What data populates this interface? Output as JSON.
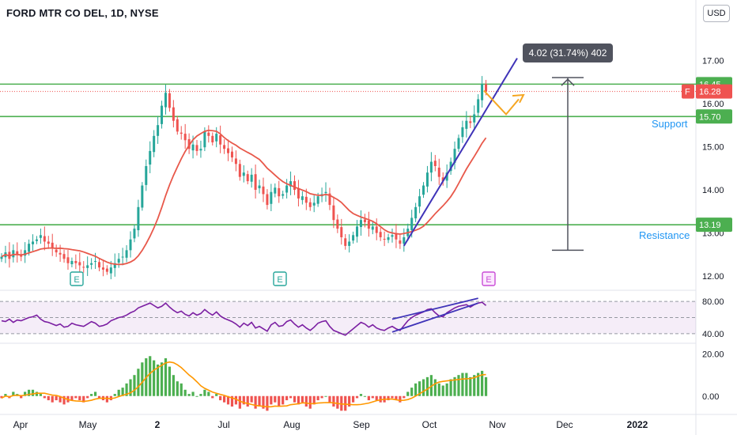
{
  "header": {
    "symbol_title": "FORD MTR CO DEL, 1D, NYSE",
    "currency_label": "USD"
  },
  "colors": {
    "up": "#26a69a",
    "down": "#ef5350",
    "levels": "#4caf50",
    "trend": "#3f33b8",
    "ma": "#e8584a",
    "rsi": "#7b1fa2",
    "hist_up": "#4caf50",
    "hist_down": "#ef5350",
    "signal": "#ff9800",
    "projection": "#f5a623",
    "measure": "#50535e",
    "label_blue": "#2196f3"
  },
  "annotations": {
    "measure_label": "4.02 (31.74%) 402",
    "support_label": "Support",
    "resistance_label": "Resistance",
    "earnings_marks": [
      "E",
      "E",
      "E"
    ],
    "levels": {
      "upper": "16.45",
      "last": "16.28",
      "last_prefix": "F",
      "support": "15.70",
      "resistance": "13.19"
    }
  },
  "chart_data": [
    {
      "type": "candlestick",
      "title": "FORD MTR CO DEL, 1D, NYSE",
      "x_ticks": [
        "Apr",
        "May",
        "2",
        "Jul",
        "Aug",
        "Sep",
        "Oct",
        "Nov",
        "Dec",
        "2022"
      ],
      "y_ticks": [
        "12.00",
        "13.00",
        "14.00",
        "15.00",
        "16.00",
        "17.00"
      ],
      "ylim": [
        11.8,
        17.3
      ],
      "horizontal_levels": [
        16.45,
        15.7,
        13.19
      ],
      "last_price": 16.28,
      "moving_average_shown": true,
      "close_series": [
        12.45,
        12.55,
        12.4,
        12.6,
        12.5,
        12.45,
        12.6,
        12.75,
        12.8,
        12.85,
        12.95,
        12.8,
        12.75,
        12.65,
        12.55,
        12.5,
        12.4,
        12.3,
        12.35,
        12.3,
        12.25,
        12.2,
        12.25,
        12.3,
        12.35,
        12.2,
        12.15,
        12.1,
        12.2,
        12.3,
        12.4,
        12.45,
        12.6,
        12.85,
        13.1,
        13.6,
        14.1,
        14.55,
        14.9,
        15.25,
        15.5,
        15.95,
        16.25,
        15.9,
        15.6,
        15.35,
        15.3,
        15.15,
        14.95,
        15.05,
        14.9,
        14.95,
        15.35,
        15.25,
        15.1,
        15.3,
        15.05,
        14.95,
        14.85,
        14.75,
        14.6,
        14.3,
        14.4,
        14.2,
        14.35,
        14.0,
        14.1,
        13.9,
        13.65,
        13.95,
        14.05,
        13.85,
        13.9,
        14.1,
        14.2,
        14.0,
        13.8,
        13.85,
        13.7,
        13.6,
        13.7,
        13.85,
        13.9,
        13.95,
        13.65,
        13.3,
        13.1,
        12.9,
        12.7,
        12.8,
        12.95,
        13.15,
        13.3,
        13.25,
        13.1,
        13.15,
        13.0,
        12.9,
        12.85,
        12.9,
        12.95,
        12.85,
        12.75,
        12.9,
        13.1,
        13.35,
        13.6,
        13.85,
        14.1,
        14.4,
        14.65,
        14.55,
        14.3,
        14.2,
        14.4,
        14.65,
        14.95,
        15.2,
        15.45,
        15.6,
        15.55,
        15.75,
        16.1,
        16.45,
        16.28
      ]
    },
    {
      "type": "line",
      "name": "",
      "y_ticks": [
        "40.00",
        "80.00"
      ],
      "ylim": [
        30,
        90
      ],
      "band": [
        40,
        80
      ],
      "midline": 60,
      "values": [
        56,
        55,
        58,
        54,
        57,
        56,
        58,
        60,
        61,
        63,
        58,
        55,
        54,
        52,
        50,
        52,
        48,
        49,
        53,
        51,
        50,
        49,
        52,
        55,
        53,
        49,
        50,
        52,
        56,
        58,
        60,
        61,
        63,
        66,
        68,
        72,
        74,
        76,
        78,
        75,
        72,
        74,
        78,
        73,
        69,
        66,
        68,
        64,
        62,
        66,
        63,
        65,
        70,
        66,
        63,
        67,
        62,
        59,
        57,
        55,
        52,
        48,
        53,
        50,
        54,
        47,
        49,
        46,
        43,
        51,
        54,
        49,
        50,
        55,
        57,
        52,
        48,
        51,
        47,
        44,
        48,
        53,
        55,
        56,
        49,
        44,
        42,
        40,
        38,
        42,
        46,
        50,
        54,
        52,
        48,
        51,
        47,
        45,
        44,
        47,
        49,
        46,
        44,
        50,
        56,
        60,
        63,
        65,
        67,
        70,
        71,
        66,
        62,
        61,
        66,
        69,
        72,
        74,
        75,
        76,
        73,
        76,
        78,
        79,
        75
      ]
    },
    {
      "type": "bar",
      "name": "",
      "y_ticks": [
        "0.00",
        "20.00"
      ],
      "ylim": [
        -8,
        24
      ],
      "signal_shown": true,
      "values": [
        -1,
        1,
        -1,
        2,
        1,
        -1,
        2,
        3,
        3,
        2,
        1,
        -1,
        -2,
        -3,
        -2,
        -3,
        -4,
        -3,
        -2,
        -1,
        -2,
        -3,
        -1,
        1,
        2,
        -1,
        -2,
        -3,
        -2,
        1,
        3,
        4,
        6,
        8,
        10,
        13,
        16,
        18,
        19,
        17,
        15,
        16,
        18,
        14,
        10,
        7,
        6,
        3,
        1,
        2,
        0,
        1,
        3,
        2,
        -1,
        1,
        -2,
        -3,
        -4,
        -5,
        -4,
        -6,
        -4,
        -5,
        -3,
        -6,
        -5,
        -6,
        -7,
        -4,
        -3,
        -5,
        -4,
        -2,
        -1,
        -3,
        -4,
        -3,
        -5,
        -6,
        -4,
        -2,
        -1,
        0,
        -3,
        -5,
        -6,
        -7,
        -7,
        -5,
        -3,
        -1,
        1,
        0,
        -2,
        -1,
        -2,
        -3,
        -3,
        -2,
        -1,
        -2,
        -3,
        -1,
        2,
        4,
        6,
        7,
        8,
        9,
        10,
        8,
        6,
        5,
        6,
        8,
        9,
        10,
        11,
        11,
        9,
        10,
        11,
        12,
        9
      ]
    }
  ]
}
